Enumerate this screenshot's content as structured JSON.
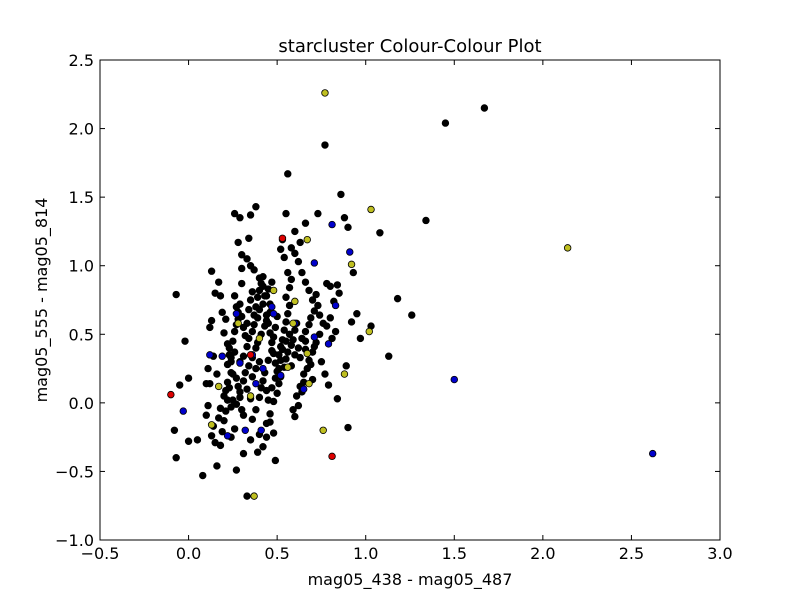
{
  "chart_data": {
    "type": "scatter",
    "title": "starcluster Colour-Colour Plot",
    "xlabel": "mag05_438 - mag05_487",
    "ylabel": "mag05_555 - mag05_814",
    "xlim": [
      -0.5,
      3.0
    ],
    "ylim": [
      -1.0,
      2.5
    ],
    "xticks": [
      -0.5,
      0.0,
      0.5,
      1.0,
      1.5,
      2.0,
      2.5,
      3.0
    ],
    "yticks": [
      -1.0,
      -0.5,
      0.0,
      0.5,
      1.0,
      1.5,
      2.0,
      2.5
    ],
    "xtick_labels": [
      "−0.5",
      "0.0",
      "0.5",
      "1.0",
      "1.5",
      "2.0",
      "2.5",
      "3.0"
    ],
    "ytick_labels": [
      "−1.0",
      "−0.5",
      "0.0",
      "0.5",
      "1.0",
      "1.5",
      "2.0",
      "2.5"
    ],
    "grid": false,
    "legend": false,
    "series": [
      {
        "color": "#000000",
        "points": [
          [
            -0.07,
            0.79
          ],
          [
            -0.02,
            0.45
          ],
          [
            -0.08,
            -0.2
          ],
          [
            -0.07,
            -0.4
          ],
          [
            -0.05,
            0.13
          ],
          [
            0.0,
            0.18
          ],
          [
            0.0,
            -0.28
          ],
          [
            0.05,
            -0.27
          ],
          [
            0.08,
            -0.53
          ],
          [
            0.1,
            -0.09
          ],
          [
            0.11,
            -0.02
          ],
          [
            0.1,
            0.14
          ],
          [
            0.12,
            0.14
          ],
          [
            0.11,
            0.25
          ],
          [
            0.12,
            0.55
          ],
          [
            0.13,
            0.6
          ],
          [
            0.14,
            0.34
          ],
          [
            0.16,
            0.21
          ],
          [
            0.13,
            0.96
          ],
          [
            0.15,
            0.8
          ],
          [
            0.17,
            0.88
          ],
          [
            0.18,
            0.78
          ],
          [
            0.19,
            0.66
          ],
          [
            0.21,
            0.61
          ],
          [
            0.2,
            0.51
          ],
          [
            0.22,
            0.43
          ],
          [
            0.23,
            0.35
          ],
          [
            0.24,
            0.3
          ],
          [
            0.25,
            0.21
          ],
          [
            0.27,
            0.18
          ],
          [
            0.28,
            0.12
          ],
          [
            0.29,
            0.04
          ],
          [
            0.3,
            -0.05
          ],
          [
            0.31,
            -0.09
          ],
          [
            0.26,
            -0.19
          ],
          [
            0.24,
            -0.25
          ],
          [
            0.27,
            -0.49
          ],
          [
            0.31,
            -0.37
          ],
          [
            0.33,
            -0.68
          ],
          [
            0.35,
            -0.27
          ],
          [
            0.36,
            -0.12
          ],
          [
            0.38,
            -0.05
          ],
          [
            0.4,
            0.04
          ],
          [
            0.41,
            0.11
          ],
          [
            0.43,
            0.22
          ],
          [
            0.45,
            0.31
          ],
          [
            0.47,
            0.38
          ],
          [
            0.48,
            0.48
          ],
          [
            0.49,
            0.55
          ],
          [
            0.5,
            0.63
          ],
          [
            0.46,
            0.72
          ],
          [
            0.44,
            0.78
          ],
          [
            0.42,
            0.85
          ],
          [
            0.4,
            0.91
          ],
          [
            0.37,
            0.97
          ],
          [
            0.35,
            1.0
          ],
          [
            0.33,
            1.05
          ],
          [
            0.3,
            0.98
          ],
          [
            0.3,
            0.87
          ],
          [
            0.29,
            0.72
          ],
          [
            0.28,
            0.66
          ],
          [
            0.27,
            0.7
          ],
          [
            0.26,
            0.78
          ],
          [
            0.25,
            0.45
          ],
          [
            0.26,
            0.37
          ],
          [
            0.24,
            0.22
          ],
          [
            0.23,
            0.11
          ],
          [
            0.22,
            0.02
          ],
          [
            0.21,
            -0.06
          ],
          [
            0.2,
            -0.13
          ],
          [
            0.19,
            -0.21
          ],
          [
            0.32,
            0.22
          ],
          [
            0.34,
            0.27
          ],
          [
            0.36,
            0.33
          ],
          [
            0.38,
            0.4
          ],
          [
            0.39,
            0.44
          ],
          [
            0.41,
            0.5
          ],
          [
            0.43,
            0.56
          ],
          [
            0.44,
            0.6
          ],
          [
            0.46,
            0.66
          ],
          [
            0.29,
            0.3
          ],
          [
            0.31,
            0.34
          ],
          [
            0.33,
            0.41
          ],
          [
            0.34,
            0.47
          ],
          [
            0.36,
            0.52
          ],
          [
            0.37,
            0.57
          ],
          [
            0.39,
            0.62
          ],
          [
            0.4,
            0.68
          ],
          [
            0.42,
            0.72
          ],
          [
            0.43,
            0.78
          ],
          [
            0.45,
            0.83
          ],
          [
            0.47,
            0.88
          ],
          [
            0.29,
            1.35
          ],
          [
            0.28,
            1.17
          ],
          [
            0.3,
            1.08
          ],
          [
            0.34,
            1.2
          ],
          [
            0.35,
            1.37
          ],
          [
            0.38,
            1.43
          ],
          [
            0.26,
            1.38
          ],
          [
            0.22,
            0.15
          ],
          [
            0.24,
            -0.03
          ],
          [
            0.39,
            -0.36
          ],
          [
            0.4,
            -0.23
          ],
          [
            0.44,
            -0.15
          ],
          [
            0.46,
            -0.08
          ],
          [
            0.48,
            0.01
          ],
          [
            0.5,
            0.07
          ],
          [
            0.51,
            0.14
          ],
          [
            0.52,
            0.19
          ],
          [
            0.54,
            0.26
          ],
          [
            0.55,
            0.32
          ],
          [
            0.56,
            0.37
          ],
          [
            0.58,
            0.42
          ],
          [
            0.59,
            0.46
          ],
          [
            0.6,
            0.53
          ],
          [
            0.61,
            0.58
          ],
          [
            0.55,
            0.77
          ],
          [
            0.57,
            0.84
          ],
          [
            0.58,
            0.9
          ],
          [
            0.56,
            0.95
          ],
          [
            0.54,
            1.06
          ],
          [
            0.52,
            1.12
          ],
          [
            0.53,
            1.19
          ],
          [
            0.58,
            1.13
          ],
          [
            0.6,
            1.25
          ],
          [
            0.63,
            1.17
          ],
          [
            0.66,
            1.31
          ],
          [
            0.55,
            1.38
          ],
          [
            0.56,
            1.67
          ],
          [
            0.6,
            1.09
          ],
          [
            0.62,
            1.03
          ],
          [
            0.64,
            0.95
          ],
          [
            0.66,
            0.88
          ],
          [
            0.68,
            0.82
          ],
          [
            0.7,
            0.75
          ],
          [
            0.72,
            0.79
          ],
          [
            0.73,
            1.38
          ],
          [
            0.77,
            1.88
          ],
          [
            0.78,
            0.87
          ],
          [
            0.8,
            0.85
          ],
          [
            0.82,
            0.74
          ],
          [
            0.85,
            0.8
          ],
          [
            0.84,
            0.86
          ],
          [
            0.86,
            1.52
          ],
          [
            0.88,
            1.35
          ],
          [
            0.9,
            1.28
          ],
          [
            0.93,
            0.95
          ],
          [
            0.95,
            0.65
          ],
          [
            0.97,
            0.47
          ],
          [
            0.92,
            0.59
          ],
          [
            0.89,
            0.27
          ],
          [
            0.84,
            0.03
          ],
          [
            0.9,
            -0.18
          ],
          [
            0.75,
            0.3
          ],
          [
            0.77,
            0.21
          ],
          [
            0.79,
            0.13
          ],
          [
            0.71,
            0.41
          ],
          [
            0.66,
            0.45
          ],
          [
            0.63,
            0.33
          ],
          [
            0.65,
            0.21
          ],
          [
            0.61,
            0.05
          ],
          [
            0.59,
            -0.05
          ],
          [
            0.63,
            0.12
          ],
          [
            0.66,
            0.39
          ],
          [
            0.69,
            0.28
          ],
          [
            0.7,
            0.17
          ],
          [
            0.78,
            0.56
          ],
          [
            0.8,
            0.62
          ],
          [
            0.81,
            0.47
          ],
          [
            0.83,
            0.52
          ],
          [
            0.49,
            -0.42
          ],
          [
            0.48,
            -0.22
          ],
          [
            0.46,
            -0.14
          ],
          [
            0.44,
            -0.25
          ],
          [
            0.42,
            -0.32
          ],
          [
            0.18,
            -0.31
          ],
          [
            0.15,
            -0.29
          ],
          [
            0.16,
            -0.46
          ],
          [
            0.13,
            -0.24
          ],
          [
            0.14,
            -0.17
          ],
          [
            0.17,
            -0.11
          ],
          [
            0.18,
            -0.04
          ],
          [
            0.2,
            0.05
          ],
          [
            0.21,
            0.09
          ],
          [
            0.22,
            0.28
          ],
          [
            0.23,
            0.4
          ],
          [
            0.24,
            0.33
          ],
          [
            0.26,
            0.52
          ],
          [
            0.27,
            0.57
          ],
          [
            0.28,
            0.61
          ],
          [
            0.3,
            0.63
          ],
          [
            0.31,
            0.55
          ],
          [
            0.32,
            0.49
          ],
          [
            0.33,
            0.58
          ],
          [
            0.34,
            0.68
          ],
          [
            0.35,
            0.75
          ],
          [
            0.36,
            0.81
          ],
          [
            0.37,
            0.64
          ],
          [
            0.38,
            0.7
          ],
          [
            0.39,
            0.77
          ],
          [
            0.4,
            0.82
          ],
          [
            0.41,
            0.87
          ],
          [
            0.42,
            0.92
          ],
          [
            0.44,
            0.64
          ],
          [
            0.45,
            0.58
          ],
          [
            0.46,
            0.51
          ],
          [
            0.47,
            0.44
          ],
          [
            0.48,
            0.36
          ],
          [
            0.49,
            0.29
          ],
          [
            0.5,
            0.23
          ],
          [
            0.51,
            0.35
          ],
          [
            0.52,
            0.41
          ],
          [
            0.53,
            0.46
          ],
          [
            0.54,
            0.53
          ],
          [
            0.55,
            0.59
          ],
          [
            0.56,
            0.65
          ],
          [
            0.57,
            0.71
          ],
          [
            1.03,
            0.56
          ],
          [
            1.08,
            1.24
          ],
          [
            1.13,
            0.34
          ],
          [
            1.18,
            0.76
          ],
          [
            1.26,
            0.64
          ],
          [
            1.34,
            1.33
          ],
          [
            1.45,
            2.04
          ],
          [
            1.67,
            2.15
          ],
          [
            0.25,
            0.02
          ],
          [
            0.27,
            -0.01
          ],
          [
            0.29,
            0.08
          ],
          [
            0.31,
            0.16
          ],
          [
            0.33,
            0.1
          ],
          [
            0.35,
            0.03
          ],
          [
            0.36,
            0.19
          ],
          [
            0.38,
            0.25
          ],
          [
            0.4,
            0.3
          ],
          [
            0.42,
            0.16
          ],
          [
            0.44,
            0.09
          ],
          [
            0.45,
            0.02
          ],
          [
            0.47,
            0.11
          ],
          [
            0.49,
            0.18
          ],
          [
            0.51,
            0.25
          ],
          [
            0.52,
            0.31
          ],
          [
            0.53,
            0.39
          ],
          [
            0.55,
            0.45
          ],
          [
            0.57,
            0.5
          ],
          [
            0.58,
            0.27
          ],
          [
            0.6,
            0.35
          ],
          [
            0.62,
            0.4
          ],
          [
            0.64,
            0.47
          ],
          [
            0.66,
            0.52
          ],
          [
            0.68,
            0.57
          ],
          [
            0.69,
            0.62
          ],
          [
            0.71,
            0.67
          ],
          [
            0.73,
            0.71
          ],
          [
            0.74,
            0.64
          ],
          [
            0.76,
            0.58
          ],
          [
            0.74,
            0.5
          ],
          [
            0.72,
            0.44
          ],
          [
            0.7,
            0.37
          ],
          [
            0.68,
            0.31
          ],
          [
            0.67,
            0.25
          ],
          [
            0.65,
            0.15
          ],
          [
            0.64,
            0.08
          ],
          [
            0.62,
            -0.02
          ],
          [
            0.6,
            -0.1
          ]
        ]
      },
      {
        "color": "#0000cc",
        "points": [
          [
            -0.03,
            -0.06
          ],
          [
            0.12,
            0.35
          ],
          [
            0.19,
            0.34
          ],
          [
            0.29,
            0.29
          ],
          [
            0.36,
            0.35
          ],
          [
            0.38,
            0.14
          ],
          [
            0.41,
            -0.2
          ],
          [
            0.32,
            -0.2
          ],
          [
            0.22,
            -0.24
          ],
          [
            0.42,
            0.25
          ],
          [
            0.47,
            0.7
          ],
          [
            0.48,
            0.65
          ],
          [
            0.71,
            0.48
          ],
          [
            0.71,
            1.02
          ],
          [
            0.79,
            0.43
          ],
          [
            0.81,
            1.3
          ],
          [
            0.83,
            0.71
          ],
          [
            0.91,
            1.1
          ],
          [
            1.5,
            0.17
          ],
          [
            2.62,
            -0.37
          ],
          [
            0.52,
            0.2
          ],
          [
            0.65,
            0.1
          ],
          [
            0.6,
            0.58
          ],
          [
            0.27,
            0.65
          ]
        ]
      },
      {
        "color": "#bfbf20",
        "points": [
          [
            0.77,
            2.26
          ],
          [
            1.03,
            1.41
          ],
          [
            2.14,
            1.13
          ],
          [
            0.92,
            1.01
          ],
          [
            0.67,
            1.19
          ],
          [
            0.6,
            0.74
          ],
          [
            0.59,
            0.58
          ],
          [
            0.67,
            0.36
          ],
          [
            0.88,
            0.21
          ],
          [
            1.02,
            0.52
          ],
          [
            0.68,
            0.14
          ],
          [
            0.76,
            -0.2
          ],
          [
            0.37,
            -0.68
          ],
          [
            0.13,
            -0.16
          ],
          [
            0.17,
            0.12
          ],
          [
            0.28,
            0.58
          ],
          [
            0.35,
            0.05
          ],
          [
            0.48,
            0.82
          ],
          [
            0.56,
            0.26
          ],
          [
            0.4,
            0.47
          ]
        ]
      },
      {
        "color": "#dd0000",
        "points": [
          [
            -0.1,
            0.06
          ],
          [
            0.53,
            1.2
          ],
          [
            0.81,
            -0.39
          ],
          [
            0.35,
            0.35
          ]
        ]
      }
    ]
  }
}
